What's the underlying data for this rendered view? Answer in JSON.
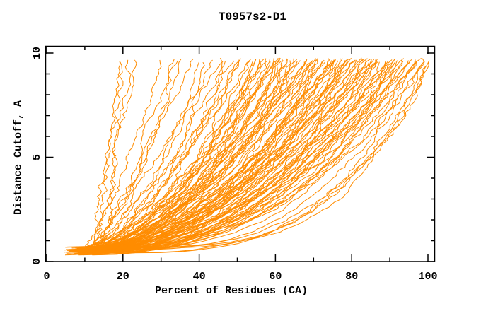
{
  "page": {
    "background": "#ffffff"
  },
  "chart_data": {
    "type": "line",
    "title": "T0957s2-D1",
    "xlabel": "Percent of Residues (CA)",
    "ylabel": "Distance Cutoff, A",
    "xlim": [
      0,
      101.8
    ],
    "ylim": [
      0,
      10.33
    ],
    "x_ticks_major": [
      0,
      20,
      40,
      60,
      80,
      100
    ],
    "x_ticks_minor": [
      10,
      30,
      50,
      70,
      90
    ],
    "y_ticks_major": [
      0,
      5,
      10
    ],
    "y_ticks_minor": [
      1,
      2,
      3,
      4,
      6,
      7,
      8,
      9
    ],
    "grid": false,
    "legend": false,
    "line_color": "#ff8c00",
    "frame_color": "#000000",
    "text_color": "#000000",
    "cutoff_min": 0.35,
    "cutoff_max": 9.7,
    "series_format": [
      "percent_at_min_cutoff",
      "percent_at_max_cutoff",
      "shape_exponent"
    ],
    "series": [
      [
        12.5,
        20.2,
        1.05
      ],
      [
        13.5,
        21.8,
        1.1
      ],
      [
        11.8,
        19.6,
        1.0
      ],
      [
        14.2,
        22.6,
        1.15
      ],
      [
        10.0,
        30.5,
        1.3
      ],
      [
        11.5,
        33.0,
        1.35
      ],
      [
        9.5,
        36.0,
        1.5
      ],
      [
        12.0,
        34.5,
        1.25
      ],
      [
        8.8,
        37.5,
        1.45
      ],
      [
        8.0,
        40.5,
        1.6
      ],
      [
        10.5,
        42.0,
        1.5
      ],
      [
        6.5,
        43.5,
        1.8
      ],
      [
        9.0,
        45.0,
        1.7
      ],
      [
        12.0,
        46.0,
        1.55
      ],
      [
        7.5,
        47.5,
        1.9
      ],
      [
        10.0,
        48.5,
        1.6
      ],
      [
        5.5,
        49.5,
        2.0
      ],
      [
        11.0,
        50.5,
        1.75
      ],
      [
        8.5,
        51.5,
        1.65
      ],
      [
        13.0,
        52.5,
        1.8
      ],
      [
        6.0,
        53.5,
        2.1
      ],
      [
        9.5,
        54.5,
        1.7
      ],
      [
        12.5,
        55.0,
        1.9
      ],
      [
        7.0,
        55.5,
        2.0
      ],
      [
        10.0,
        56.0,
        1.7
      ],
      [
        5.0,
        56.5,
        2.2
      ],
      [
        8.5,
        57.0,
        1.8
      ],
      [
        11.5,
        57.5,
        1.6
      ],
      [
        6.5,
        58.0,
        2.3
      ],
      [
        9.0,
        58.5,
        1.9
      ],
      [
        12.0,
        59.0,
        1.7
      ],
      [
        7.5,
        59.5,
        2.1
      ],
      [
        10.5,
        60.0,
        1.8
      ],
      [
        5.5,
        60.5,
        2.4
      ],
      [
        8.0,
        61.0,
        1.65
      ],
      [
        13.0,
        61.5,
        1.9
      ],
      [
        6.0,
        62.0,
        2.2
      ],
      [
        9.5,
        62.5,
        1.75
      ],
      [
        11.0,
        63.0,
        2.0
      ],
      [
        7.0,
        63.5,
        1.85
      ],
      [
        10.0,
        64.0,
        2.3
      ],
      [
        4.5,
        64.5,
        2.05
      ],
      [
        8.5,
        65.0,
        1.7
      ],
      [
        12.5,
        65.5,
        1.95
      ],
      [
        6.5,
        66.0,
        2.25
      ],
      [
        9.0,
        66.5,
        1.8
      ],
      [
        11.5,
        67.0,
        2.1
      ],
      [
        7.5,
        67.5,
        1.9
      ],
      [
        10.5,
        68.0,
        2.35
      ],
      [
        5.0,
        68.5,
        2.0
      ],
      [
        8.0,
        69.0,
        1.75
      ],
      [
        12.0,
        69.5,
        2.15
      ],
      [
        6.0,
        70.0,
        1.85
      ],
      [
        9.5,
        70.5,
        2.0
      ],
      [
        11.0,
        71.0,
        2.3
      ],
      [
        7.0,
        71.5,
        1.8
      ],
      [
        10.0,
        72.0,
        2.1
      ],
      [
        5.5,
        72.5,
        2.45
      ],
      [
        8.5,
        73.0,
        1.9
      ],
      [
        12.5,
        73.5,
        2.2
      ],
      [
        6.5,
        74.0,
        2.0
      ],
      [
        9.0,
        74.5,
        2.35
      ],
      [
        11.5,
        75.0,
        1.85
      ],
      [
        7.5,
        75.5,
        2.15
      ],
      [
        10.5,
        76.0,
        2.5
      ],
      [
        5.0,
        76.5,
        1.95
      ],
      [
        8.0,
        77.0,
        2.25
      ],
      [
        13.0,
        77.5,
        2.05
      ],
      [
        6.0,
        78.0,
        2.4
      ],
      [
        9.5,
        78.5,
        1.9
      ],
      [
        11.0,
        79.0,
        2.2
      ],
      [
        7.0,
        79.5,
        2.55
      ],
      [
        10.0,
        80.0,
        2.0
      ],
      [
        4.5,
        80.5,
        2.3
      ],
      [
        8.5,
        81.0,
        2.1
      ],
      [
        12.0,
        81.5,
        2.45
      ],
      [
        6.5,
        82.0,
        1.95
      ],
      [
        9.0,
        82.5,
        2.25
      ],
      [
        11.5,
        83.0,
        2.6
      ],
      [
        7.5,
        83.5,
        2.05
      ],
      [
        10.5,
        84.0,
        2.35
      ],
      [
        5.5,
        84.5,
        2.15
      ],
      [
        8.0,
        85.0,
        2.5
      ],
      [
        12.5,
        74.8,
        1.75
      ],
      [
        6.2,
        78.8,
        2.6
      ],
      [
        9.8,
        71.8,
        2.42
      ],
      [
        7.8,
        83.8,
        1.88
      ],
      [
        10.0,
        85.5,
        2.2
      ],
      [
        6.0,
        86.0,
        2.5
      ],
      [
        8.5,
        86.5,
        2.0
      ],
      [
        11.0,
        87.0,
        2.35
      ],
      [
        7.0,
        87.5,
        2.65
      ],
      [
        9.5,
        88.0,
        2.1
      ],
      [
        12.0,
        88.5,
        2.45
      ],
      [
        5.5,
        89.0,
        2.25
      ],
      [
        8.0,
        89.5,
        2.7
      ],
      [
        10.5,
        90.0,
        2.05
      ],
      [
        6.5,
        90.5,
        2.4
      ],
      [
        9.0,
        91.0,
        2.6
      ],
      [
        11.5,
        91.5,
        2.2
      ],
      [
        7.5,
        92.0,
        2.5
      ],
      [
        10.0,
        92.5,
        2.85
      ],
      [
        5.0,
        93.0,
        2.3
      ],
      [
        8.5,
        93.5,
        2.65
      ],
      [
        12.5,
        94.0,
        2.15
      ],
      [
        6.0,
        94.5,
        2.45
      ],
      [
        9.5,
        95.0,
        2.75
      ],
      [
        11.0,
        95.5,
        2.35
      ],
      [
        7.0,
        96.0,
        2.6
      ],
      [
        10.5,
        97.0,
        2.9
      ],
      [
        8.0,
        98.0,
        2.5
      ],
      [
        9.0,
        99.0,
        2.7
      ],
      [
        9.0,
        97.5,
        3.4
      ],
      [
        11.0,
        98.5,
        3.7
      ],
      [
        7.5,
        99.5,
        3.9
      ],
      [
        10.0,
        100.5,
        4.2
      ],
      [
        8.5,
        100.0,
        4.0
      ],
      [
        12.0,
        101.0,
        3.3
      ]
    ]
  }
}
